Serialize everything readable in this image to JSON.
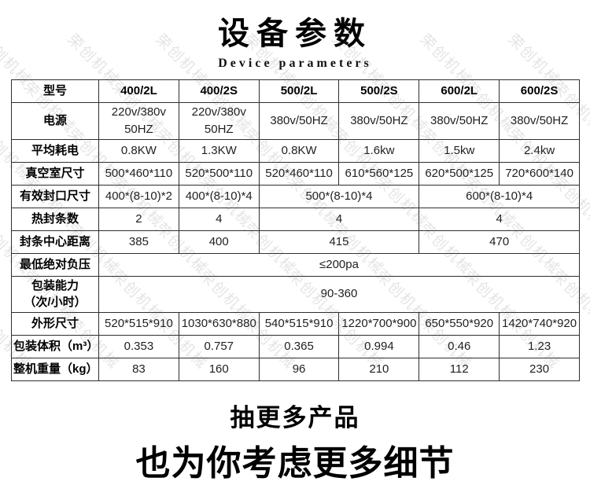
{
  "title": {
    "main": "设备参数",
    "subtitle": "Device parameters"
  },
  "watermark": {
    "text": "荣创机械"
  },
  "table": {
    "header": [
      "型号",
      "400/2L",
      "400/2S",
      "500/2L",
      "500/2S",
      "600/2L",
      "600/2S"
    ],
    "rows": [
      {
        "label": "电源",
        "cells": [
          {
            "text": "220v/380v\n50HZ",
            "colspan": 1
          },
          {
            "text": "220v/380v\n50HZ",
            "colspan": 1
          },
          {
            "text": "380v/50HZ",
            "colspan": 1
          },
          {
            "text": "380v/50HZ",
            "colspan": 1
          },
          {
            "text": "380v/50HZ",
            "colspan": 1
          },
          {
            "text": "380v/50HZ",
            "colspan": 1
          }
        ]
      },
      {
        "label": "平均耗电",
        "cells": [
          {
            "text": "0.8KW",
            "colspan": 1
          },
          {
            "text": "1.3KW",
            "colspan": 1
          },
          {
            "text": "0.8KW",
            "colspan": 1
          },
          {
            "text": "1.6kw",
            "colspan": 1
          },
          {
            "text": "1.5kw",
            "colspan": 1
          },
          {
            "text": "2.4kw",
            "colspan": 1
          }
        ]
      },
      {
        "label": "真空室尺寸",
        "cells": [
          {
            "text": "500*460*110",
            "colspan": 1
          },
          {
            "text": "520*500*110",
            "colspan": 1
          },
          {
            "text": "520*460*110",
            "colspan": 1
          },
          {
            "text": "610*560*125",
            "colspan": 1
          },
          {
            "text": "620*500*125",
            "colspan": 1
          },
          {
            "text": "720*600*140",
            "colspan": 1
          }
        ]
      },
      {
        "label": "有效封口尺寸",
        "cells": [
          {
            "text": "400*(8-10)*2",
            "colspan": 1
          },
          {
            "text": "400*(8-10)*4",
            "colspan": 1
          },
          {
            "text": "500*(8-10)*4",
            "colspan": 2
          },
          {
            "text": "600*(8-10)*4",
            "colspan": 2
          }
        ]
      },
      {
        "label": "热封条数",
        "cells": [
          {
            "text": "2",
            "colspan": 1
          },
          {
            "text": "4",
            "colspan": 1
          },
          {
            "text": "4",
            "colspan": 2
          },
          {
            "text": "4",
            "colspan": 2
          }
        ]
      },
      {
        "label": "封条中心距离",
        "cells": [
          {
            "text": "385",
            "colspan": 1
          },
          {
            "text": "400",
            "colspan": 1
          },
          {
            "text": "415",
            "colspan": 2
          },
          {
            "text": "470",
            "colspan": 2
          }
        ]
      },
      {
        "label": "最低绝对负压",
        "cells": [
          {
            "text": "≤200pa",
            "colspan": 6
          }
        ]
      },
      {
        "label": "包装能力\n（次/小时）",
        "cells": [
          {
            "text": "90-360",
            "colspan": 6
          }
        ]
      },
      {
        "label": "外形尺寸",
        "cells": [
          {
            "text": "520*515*910",
            "colspan": 1
          },
          {
            "text": "1030*630*880",
            "colspan": 1
          },
          {
            "text": "540*515*910",
            "colspan": 1
          },
          {
            "text": "1220*700*900",
            "colspan": 1
          },
          {
            "text": "650*550*920",
            "colspan": 1
          },
          {
            "text": "1420*740*920",
            "colspan": 1
          }
        ]
      },
      {
        "label": "包装体积（m³）",
        "cells": [
          {
            "text": "0.353",
            "colspan": 1
          },
          {
            "text": "0.757",
            "colspan": 1
          },
          {
            "text": "0.365",
            "colspan": 1
          },
          {
            "text": "0.994",
            "colspan": 1
          },
          {
            "text": "0.46",
            "colspan": 1
          },
          {
            "text": "1.23",
            "colspan": 1
          }
        ]
      },
      {
        "label": "整机重量（kg）",
        "cells": [
          {
            "text": "83",
            "colspan": 1
          },
          {
            "text": "160",
            "colspan": 1
          },
          {
            "text": "96",
            "colspan": 1
          },
          {
            "text": "210",
            "colspan": 1
          },
          {
            "text": "112",
            "colspan": 1
          },
          {
            "text": "230",
            "colspan": 1
          }
        ]
      }
    ]
  },
  "footer": {
    "line1": "抽更多产品",
    "line2": "也为你考虑更多细节"
  }
}
